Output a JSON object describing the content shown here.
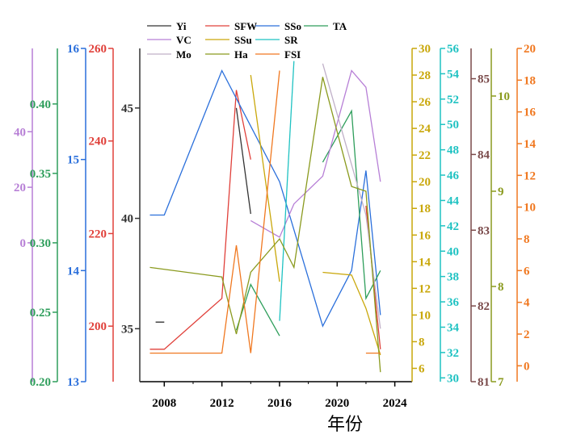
{
  "chart_data": {
    "type": "line",
    "title": "",
    "xlabel": "年份",
    "xlim": [
      2006.3,
      2025.2
    ],
    "x_ticks": [
      2008,
      2012,
      2016,
      2020,
      2024
    ],
    "grid": false,
    "legend_position": "top-center",
    "axes": [
      {
        "id": "vc",
        "side": "left",
        "color": "#b77fd6",
        "min": -50,
        "max": 70,
        "ticks": [
          0,
          20,
          40
        ],
        "tick_labels": [
          "0",
          "20",
          "40"
        ]
      },
      {
        "id": "ta",
        "side": "left",
        "color": "#2e9e5b",
        "min": 0.2,
        "max": 0.44,
        "ticks": [
          0.2,
          0.25,
          0.3,
          0.35,
          0.4
        ],
        "tick_labels": [
          "0.20",
          "0.25",
          "0.30",
          "0.35",
          "0.40"
        ]
      },
      {
        "id": "sso",
        "side": "left",
        "color": "#2a6fdb",
        "min": 13,
        "max": 16,
        "ticks": [
          13,
          14,
          15,
          16
        ],
        "tick_labels": [
          "13",
          "14",
          "15",
          "16"
        ]
      },
      {
        "id": "sfw",
        "side": "left",
        "color": "#e0403a",
        "min": 188,
        "max": 260,
        "ticks": [
          200,
          220,
          240,
          260
        ],
        "tick_labels": [
          "200",
          "220",
          "240",
          "260"
        ]
      },
      {
        "id": "yi",
        "side": "left",
        "color": "#333333",
        "min": 32.6,
        "max": 47.7,
        "ticks": [
          35,
          40,
          45
        ],
        "tick_labels": [
          "35",
          "40",
          "45"
        ]
      },
      {
        "id": "ssu",
        "side": "right",
        "color": "#c9a70a",
        "min": 5,
        "max": 30,
        "ticks": [
          6,
          8,
          10,
          12,
          14,
          16,
          18,
          20,
          22,
          24,
          26,
          28,
          30
        ],
        "tick_labels": [
          "6",
          "8",
          "10",
          "12",
          "14",
          "16",
          "18",
          "20",
          "22",
          "24",
          "26",
          "28",
          "30"
        ]
      },
      {
        "id": "sr",
        "side": "right",
        "color": "#1fc2c2",
        "min": 29.7,
        "max": 56,
        "ticks": [
          30,
          32,
          34,
          36,
          38,
          40,
          42,
          44,
          46,
          48,
          50,
          52,
          54,
          56
        ],
        "tick_labels": [
          "30",
          "32",
          "34",
          "36",
          "38",
          "40",
          "42",
          "44",
          "46",
          "48",
          "50",
          "52",
          "54",
          "56"
        ]
      },
      {
        "id": "mo",
        "side": "right",
        "color": "#7a4a4a",
        "min": 81,
        "max": 85.4,
        "ticks": [
          81,
          82,
          83,
          84,
          85
        ],
        "tick_labels": [
          "81",
          "82",
          "83",
          "84",
          "85"
        ]
      },
      {
        "id": "ha",
        "side": "right",
        "color": "#8a9a1e",
        "min": 7,
        "max": 10.5,
        "ticks": [
          7,
          8,
          9,
          10
        ],
        "tick_labels": [
          "7",
          "8",
          "9",
          "10"
        ]
      },
      {
        "id": "fsi",
        "side": "right",
        "color": "#f07820",
        "min": -1,
        "max": 20,
        "ticks": [
          0,
          2,
          4,
          6,
          8,
          10,
          12,
          14,
          16,
          18,
          20
        ],
        "tick_labels": [
          "0",
          "2",
          "4",
          "6",
          "8",
          "10",
          "12",
          "14",
          "16",
          "18",
          "20"
        ]
      }
    ],
    "series": [
      {
        "name": "Yi",
        "axis": "yi",
        "color": "#333333",
        "points": [
          [
            2007.4,
            35.3
          ],
          [
            2008,
            35.3
          ],
          [
            null,
            null
          ],
          [
            2013,
            45
          ],
          [
            2014,
            40.2
          ]
        ]
      },
      {
        "name": "SFW",
        "axis": "sfw",
        "color": "#e0403a",
        "points": [
          [
            2007,
            195
          ],
          [
            2008,
            195
          ],
          [
            2012,
            206
          ],
          [
            2013,
            251
          ],
          [
            2014,
            236
          ],
          [
            null,
            null
          ],
          [
            2022,
            226
          ],
          [
            2023,
            195
          ]
        ]
      },
      {
        "name": "SSo",
        "axis": "sso",
        "color": "#2a6fdb",
        "points": [
          [
            2007,
            14.5
          ],
          [
            2008,
            14.5
          ],
          [
            2012,
            15.8
          ],
          [
            2016,
            14.8
          ],
          [
            2019,
            13.5
          ],
          [
            2021,
            14.0
          ],
          [
            2022,
            14.9
          ],
          [
            2023,
            13.6
          ]
        ]
      },
      {
        "name": "TA",
        "axis": "ta",
        "color": "#2e9e5b",
        "points": [
          [
            2013,
            0.237
          ],
          [
            2014,
            0.27
          ],
          [
            2016,
            0.233
          ],
          [
            null,
            null
          ],
          [
            2019,
            0.358
          ],
          [
            2021,
            0.395
          ],
          [
            2022,
            0.26
          ],
          [
            2023,
            0.28
          ]
        ]
      },
      {
        "name": "VC",
        "axis": "vc",
        "color": "#b77fd6",
        "points": [
          [
            2014,
            8
          ],
          [
            2016,
            2
          ],
          [
            2017,
            14
          ],
          [
            2019,
            24
          ],
          [
            2021,
            62
          ],
          [
            2022,
            56
          ],
          [
            2023,
            22
          ]
        ]
      },
      {
        "name": "SSu",
        "axis": "ssu",
        "color": "#c9a70a",
        "points": [
          [
            2014,
            28
          ],
          [
            2016,
            12.5
          ],
          [
            null,
            null
          ],
          [
            2019,
            13.2
          ],
          [
            2021,
            13
          ],
          [
            2022,
            10.5
          ],
          [
            2023,
            7
          ]
        ]
      },
      {
        "name": "SR",
        "axis": "sr",
        "color": "#1fc2c2",
        "points": [
          [
            2016,
            34.5
          ],
          [
            2017,
            55
          ]
        ]
      },
      {
        "name": "Mo",
        "axis": "mo",
        "color": "#c0b0c8",
        "points": [
          [
            2019,
            85.2
          ],
          [
            2022,
            83.2
          ],
          [
            2023,
            81.7
          ]
        ]
      },
      {
        "name": "Ha",
        "axis": "ha",
        "color": "#8a9a1e",
        "points": [
          [
            2007,
            8.2
          ],
          [
            2012,
            8.1
          ],
          [
            2013,
            7.5
          ],
          [
            2014,
            8.15
          ],
          [
            2016,
            8.5
          ],
          [
            2017,
            8.2
          ],
          [
            2019,
            10.2
          ],
          [
            2021,
            9.05
          ],
          [
            2022,
            9.0
          ],
          [
            2023,
            7.1
          ]
        ]
      },
      {
        "name": "FSI",
        "axis": "fsi",
        "color": "#f07820",
        "points": [
          [
            2007,
            0.8
          ],
          [
            2012,
            0.8
          ],
          [
            2013,
            7.6
          ],
          [
            2014,
            0.8
          ],
          [
            2016,
            18.6
          ],
          [
            null,
            null
          ],
          [
            2022,
            0.8
          ],
          [
            2023,
            0.8
          ]
        ]
      }
    ]
  }
}
